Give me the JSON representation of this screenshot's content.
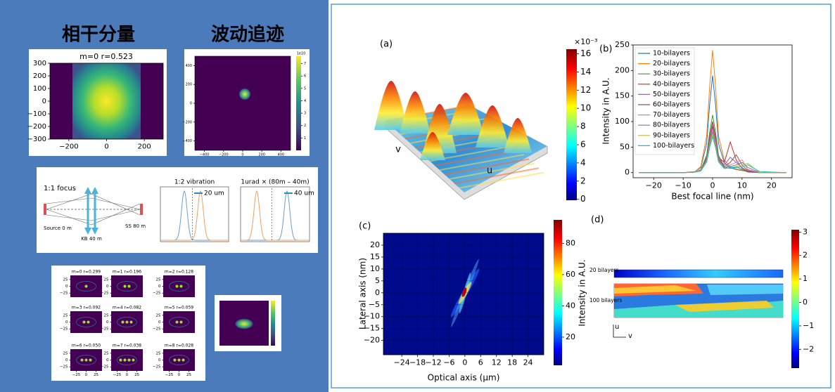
{
  "figure": {
    "left": {
      "heading_coherent": "相干分量",
      "heading_wave": "波动追迹",
      "coherent_plot": {
        "title": "m=0 r=0.523",
        "xlim": [
          -300,
          300
        ],
        "ylim": [
          -300,
          300
        ],
        "xticks": [
          {
            "value": -200,
            "label": "−200"
          },
          0,
          200
        ],
        "yticks": [
          300,
          200,
          100,
          0,
          {
            "value": -100,
            "label": "−100"
          },
          {
            "value": -200,
            "label": "−200"
          },
          {
            "value": -300,
            "label": "−300"
          }
        ]
      },
      "wave_plot": {
        "xlim": [
          -500,
          500
        ],
        "ylim": [
          -500,
          500
        ],
        "xticks": [
          {
            "value": -400,
            "label": "−400"
          },
          {
            "value": -200,
            "label": "−200"
          },
          0,
          200,
          400
        ],
        "yticks": [
          400,
          200,
          0,
          {
            "value": -200,
            "label": "−200"
          },
          {
            "value": -400,
            "label": "−400"
          }
        ],
        "colorbar_scale": "1e10",
        "colorbar_lim": [
          0,
          7.6
        ],
        "colorbar_ticks": [
          1,
          2,
          3,
          4,
          5,
          6,
          7
        ]
      },
      "optics_diagram": {
        "focus_title": "1:1 focus",
        "source_label": "Source 0 m",
        "kb_label": "KB 40 m",
        "ss_label": "SS 80 m",
        "vibration_title": "1:2 vibration",
        "vibration_shift": "20 um",
        "angle_title": "1urad × (80m – 40m)",
        "angle_shift": "40 um"
      },
      "mode_grid": {
        "titles": [
          "m=0 r=0.299",
          "m=1 r=0.196",
          "m=2 r=0.128",
          "m=3 r=0.092",
          "m=4 r=0.082",
          "m=5 r=0.059",
          "m=6 r=0.050",
          "m=7 r=0.038",
          "m=8 r=0.028"
        ],
        "lim": [
          -40,
          40
        ],
        "ticks": [
          {
            "value": -25,
            "label": "−25"
          },
          0,
          25
        ]
      }
    },
    "right": {
      "panel_a": {
        "label": "(a)",
        "u_label": "u",
        "v_label": "v",
        "colorbar_scale": "×10⁻³",
        "colorbar_lim": [
          -0.1,
          16.5
        ],
        "colorbar_ticks": [
          0,
          2,
          4,
          6,
          8,
          10,
          12,
          14,
          16
        ]
      },
      "panel_b_label": "(b)",
      "panel_c": {
        "label": "(c)",
        "xlabel": "Optical axis (μm)",
        "ylabel": "Lateral axis (nm)",
        "xlim": [
          -31,
          30
        ],
        "ylim": [
          -26,
          25
        ],
        "xticks": [
          {
            "value": -24,
            "label": "−24"
          },
          {
            "value": -18,
            "label": "−18"
          },
          {
            "value": -12,
            "label": "−12"
          },
          {
            "value": -6,
            "label": "−6"
          },
          0,
          6,
          12,
          18,
          24
        ],
        "yticks": [
          20,
          15,
          10,
          5,
          0,
          {
            "value": -5,
            "label": "−5"
          },
          {
            "value": -10,
            "label": "−10"
          },
          {
            "value": -15,
            "label": "−15"
          },
          {
            "value": -20,
            "label": "−20"
          }
        ],
        "grid": true,
        "colorbar_label": "Intensity in A.U.",
        "colorbar_lim": [
          2,
          95
        ],
        "colorbar_ticks": [
          20,
          40,
          60,
          80
        ]
      },
      "panel_d": {
        "label": "(d)",
        "row_20": "20 bilayers",
        "row_100": "100 bilayers",
        "u_label": "u",
        "v_label": "v",
        "colorbar_lim": [
          -2.8,
          3.1
        ],
        "colorbar_ticks": [
          3,
          2,
          1,
          0,
          {
            "value": -1,
            "label": "−1"
          },
          {
            "value": -2,
            "label": "−2"
          }
        ]
      }
    }
  },
  "chart_data": {
    "type": "line",
    "xlabel": "Best focal line (nm)",
    "ylabel": "Intensity in A.U.",
    "xlim": [
      -27,
      27
    ],
    "ylim": [
      -10,
      250
    ],
    "xticks": [
      {
        "value": -20,
        "label": "−20"
      },
      {
        "value": -10,
        "label": "−10"
      },
      0,
      10,
      20
    ],
    "yticks": [
      0,
      50,
      100,
      150,
      200,
      250
    ],
    "legend": "upper left",
    "x": [
      -25,
      -10,
      -6,
      -4,
      -2,
      -1,
      0,
      1,
      2,
      4,
      6,
      8,
      10,
      12,
      16,
      25
    ],
    "series": [
      {
        "name": "10-bilayers",
        "color": "#1f77b4",
        "values": [
          0,
          0,
          2,
          10,
          57,
          133,
          190,
          133,
          57,
          19,
          10,
          6,
          4,
          2,
          0,
          0
        ]
      },
      {
        "name": "20-bilayers",
        "color": "#ff7f0e",
        "values": [
          0,
          0,
          2,
          12,
          72,
          168,
          240,
          168,
          72,
          24,
          12,
          7,
          5,
          2,
          0,
          0
        ]
      },
      {
        "name": "30-bilayers",
        "color": "#2ca02c",
        "values": [
          0,
          0,
          1,
          6,
          34,
          79,
          113,
          79,
          34,
          11,
          8,
          12,
          6,
          1,
          0,
          0
        ]
      },
      {
        "name": "40-bilayers",
        "color": "#d62728",
        "values": [
          0,
          0,
          1,
          5,
          30,
          70,
          100,
          70,
          30,
          20,
          60,
          25,
          8,
          2,
          0,
          0
        ]
      },
      {
        "name": "50-bilayers",
        "color": "#9467bd",
        "values": [
          0,
          0,
          1,
          5,
          28,
          66,
          95,
          66,
          28,
          15,
          30,
          20,
          10,
          3,
          0,
          0
        ]
      },
      {
        "name": "60-bilayers",
        "color": "#8c564b",
        "values": [
          0,
          0,
          1,
          4,
          27,
          63,
          90,
          63,
          27,
          12,
          20,
          35,
          15,
          4,
          0,
          0
        ]
      },
      {
        "name": "70-bilayers",
        "color": "#e377c2",
        "values": [
          0,
          0,
          1,
          4,
          25,
          60,
          85,
          60,
          25,
          10,
          15,
          20,
          25,
          6,
          0,
          0
        ]
      },
      {
        "name": "80-bilayers",
        "color": "#7f7f7f",
        "values": [
          0,
          0,
          1,
          4,
          24,
          56,
          80,
          56,
          24,
          10,
          12,
          15,
          20,
          10,
          0,
          0
        ]
      },
      {
        "name": "90-bilayers",
        "color": "#bcbd22",
        "values": [
          0,
          0,
          1,
          4,
          22,
          52,
          75,
          52,
          22,
          8,
          10,
          12,
          15,
          18,
          0,
          0
        ]
      },
      {
        "name": "100-bilayers",
        "color": "#17becf",
        "values": [
          0,
          0,
          1,
          3,
          21,
          49,
          70,
          49,
          21,
          8,
          10,
          10,
          12,
          15,
          2,
          0
        ]
      }
    ]
  }
}
